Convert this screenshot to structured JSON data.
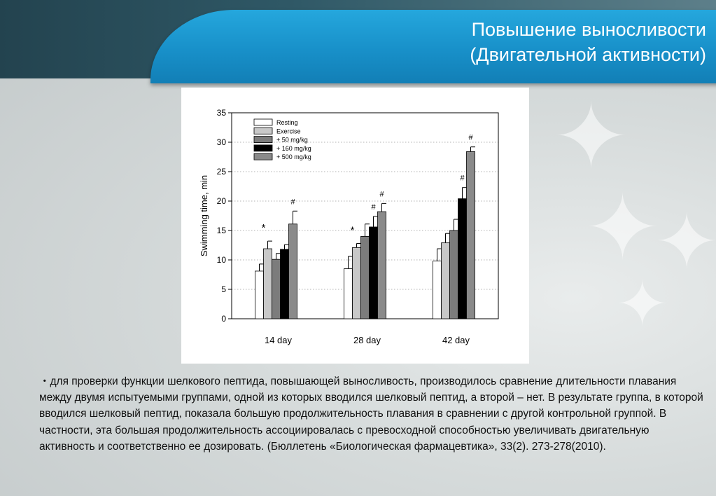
{
  "slide": {
    "title_line1": "Повышение выносливости",
    "title_line2": "(Двигательной активности)",
    "body": "・для проверки функции шелкового пептида, повышающей выносливость, производилось сравнение длительности плавания между двумя испытуемыми группами, одной из которых вводился шелковый пептид, а второй – нет. В результате группа, в которой вводился шелковый пептид, показала большую продолжительность плавания в сравнении с другой контрольной группой. В частности, эта большая продолжительность ассоциировалась с превосходной способностью увеличивать двигательную активность и соответственно ее дозировать.  (Бюллетень «Биологическая фармацевтика», 33(2). 273-278(2010)."
  },
  "chart_data": {
    "type": "bar",
    "title": "",
    "xlabel": "",
    "ylabel": "Swimming time, min",
    "ylim": [
      0,
      35
    ],
    "yticks": [
      0,
      5,
      10,
      15,
      20,
      25,
      30,
      35
    ],
    "grid": "horizontal dotted",
    "legend_position": "top-left",
    "categories": [
      "14 day",
      "28 day",
      "42 day"
    ],
    "series": [
      {
        "name": "Resting",
        "color": "#ffffff",
        "values": [
          8.1,
          8.5,
          9.8
        ],
        "errors": [
          1.2,
          2.1,
          2.1
        ]
      },
      {
        "name": "Exercise",
        "color": "#c8c8c8",
        "values": [
          11.9,
          12.1,
          12.9
        ],
        "errors": [
          1.3,
          0.7,
          1.6
        ]
      },
      {
        "name": "+ 50 mg/kg",
        "color": "#7c7c7c",
        "values": [
          10.1,
          14.0,
          15.0
        ],
        "errors": [
          1.0,
          2.1,
          1.9
        ]
      },
      {
        "name": "+ 160 mg/kg",
        "color": "#000000",
        "values": [
          11.8,
          15.6,
          20.4
        ],
        "errors": [
          0.8,
          1.8,
          1.9
        ]
      },
      {
        "name": "+ 500 mg/kg",
        "color": "#8a8a8a",
        "values": [
          16.1,
          18.2,
          28.4
        ],
        "errors": [
          2.2,
          1.4,
          0.8
        ]
      }
    ],
    "annotations": [
      {
        "category": "14 day",
        "series": "Exercise",
        "text": "*"
      },
      {
        "category": "14 day",
        "series": "+ 500 mg/kg",
        "text": "#"
      },
      {
        "category": "28 day",
        "series": "Exercise",
        "text": "*"
      },
      {
        "category": "28 day",
        "series": "+ 160 mg/kg",
        "text": "#"
      },
      {
        "category": "28 day",
        "series": "+ 500 mg/kg",
        "text": "#"
      },
      {
        "category": "42 day",
        "series": "+ 160 mg/kg",
        "text": "#"
      },
      {
        "category": "42 day",
        "series": "+ 500 mg/kg",
        "text": "#"
      }
    ]
  }
}
